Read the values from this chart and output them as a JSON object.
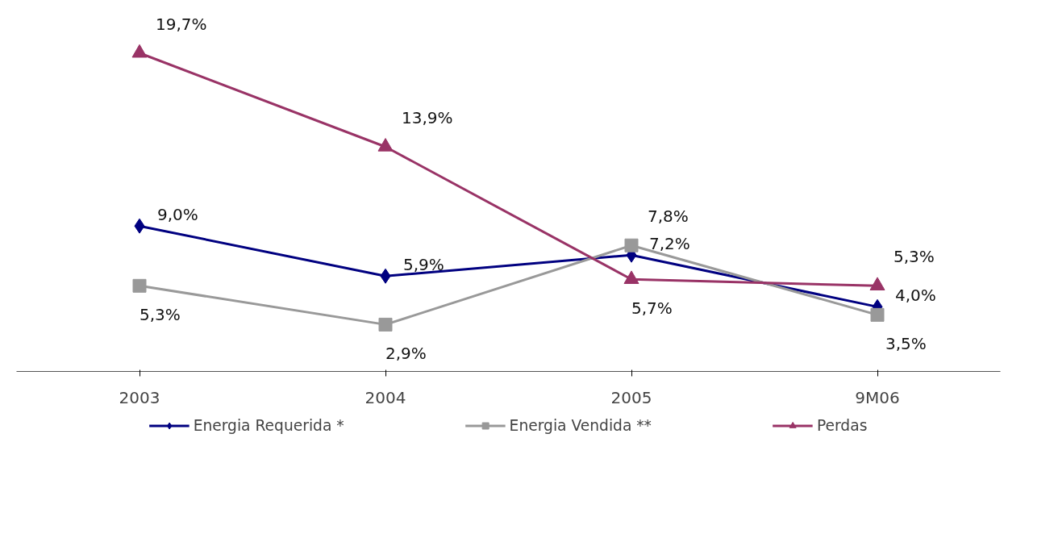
{
  "chart_data": {
    "type": "line",
    "categories": [
      "2003",
      "2004",
      "2005",
      "9M06"
    ],
    "tick_labels": "x",
    "grid": false,
    "legend": "bottom",
    "series": [
      {
        "name": "Energia Requerida *",
        "color": "#000080",
        "marker": "diamond",
        "values": [
          9.0,
          5.9,
          7.2,
          4.0
        ],
        "value_labels": [
          "9,0%",
          "5,9%",
          "7,2%",
          "4,0%"
        ]
      },
      {
        "name": "Energia Vendida **",
        "color": "#999999",
        "marker": "square",
        "values": [
          5.3,
          2.9,
          7.8,
          3.5
        ],
        "value_labels": [
          "5,3%",
          "2,9%",
          "7,8%",
          "3,5%"
        ]
      },
      {
        "name": "Perdas",
        "color": "#993366",
        "marker": "triangle",
        "values": [
          19.7,
          13.9,
          5.7,
          5.3
        ],
        "value_labels": [
          "19,7%",
          "13,9%",
          "5,7%",
          "5,3%"
        ]
      }
    ]
  }
}
